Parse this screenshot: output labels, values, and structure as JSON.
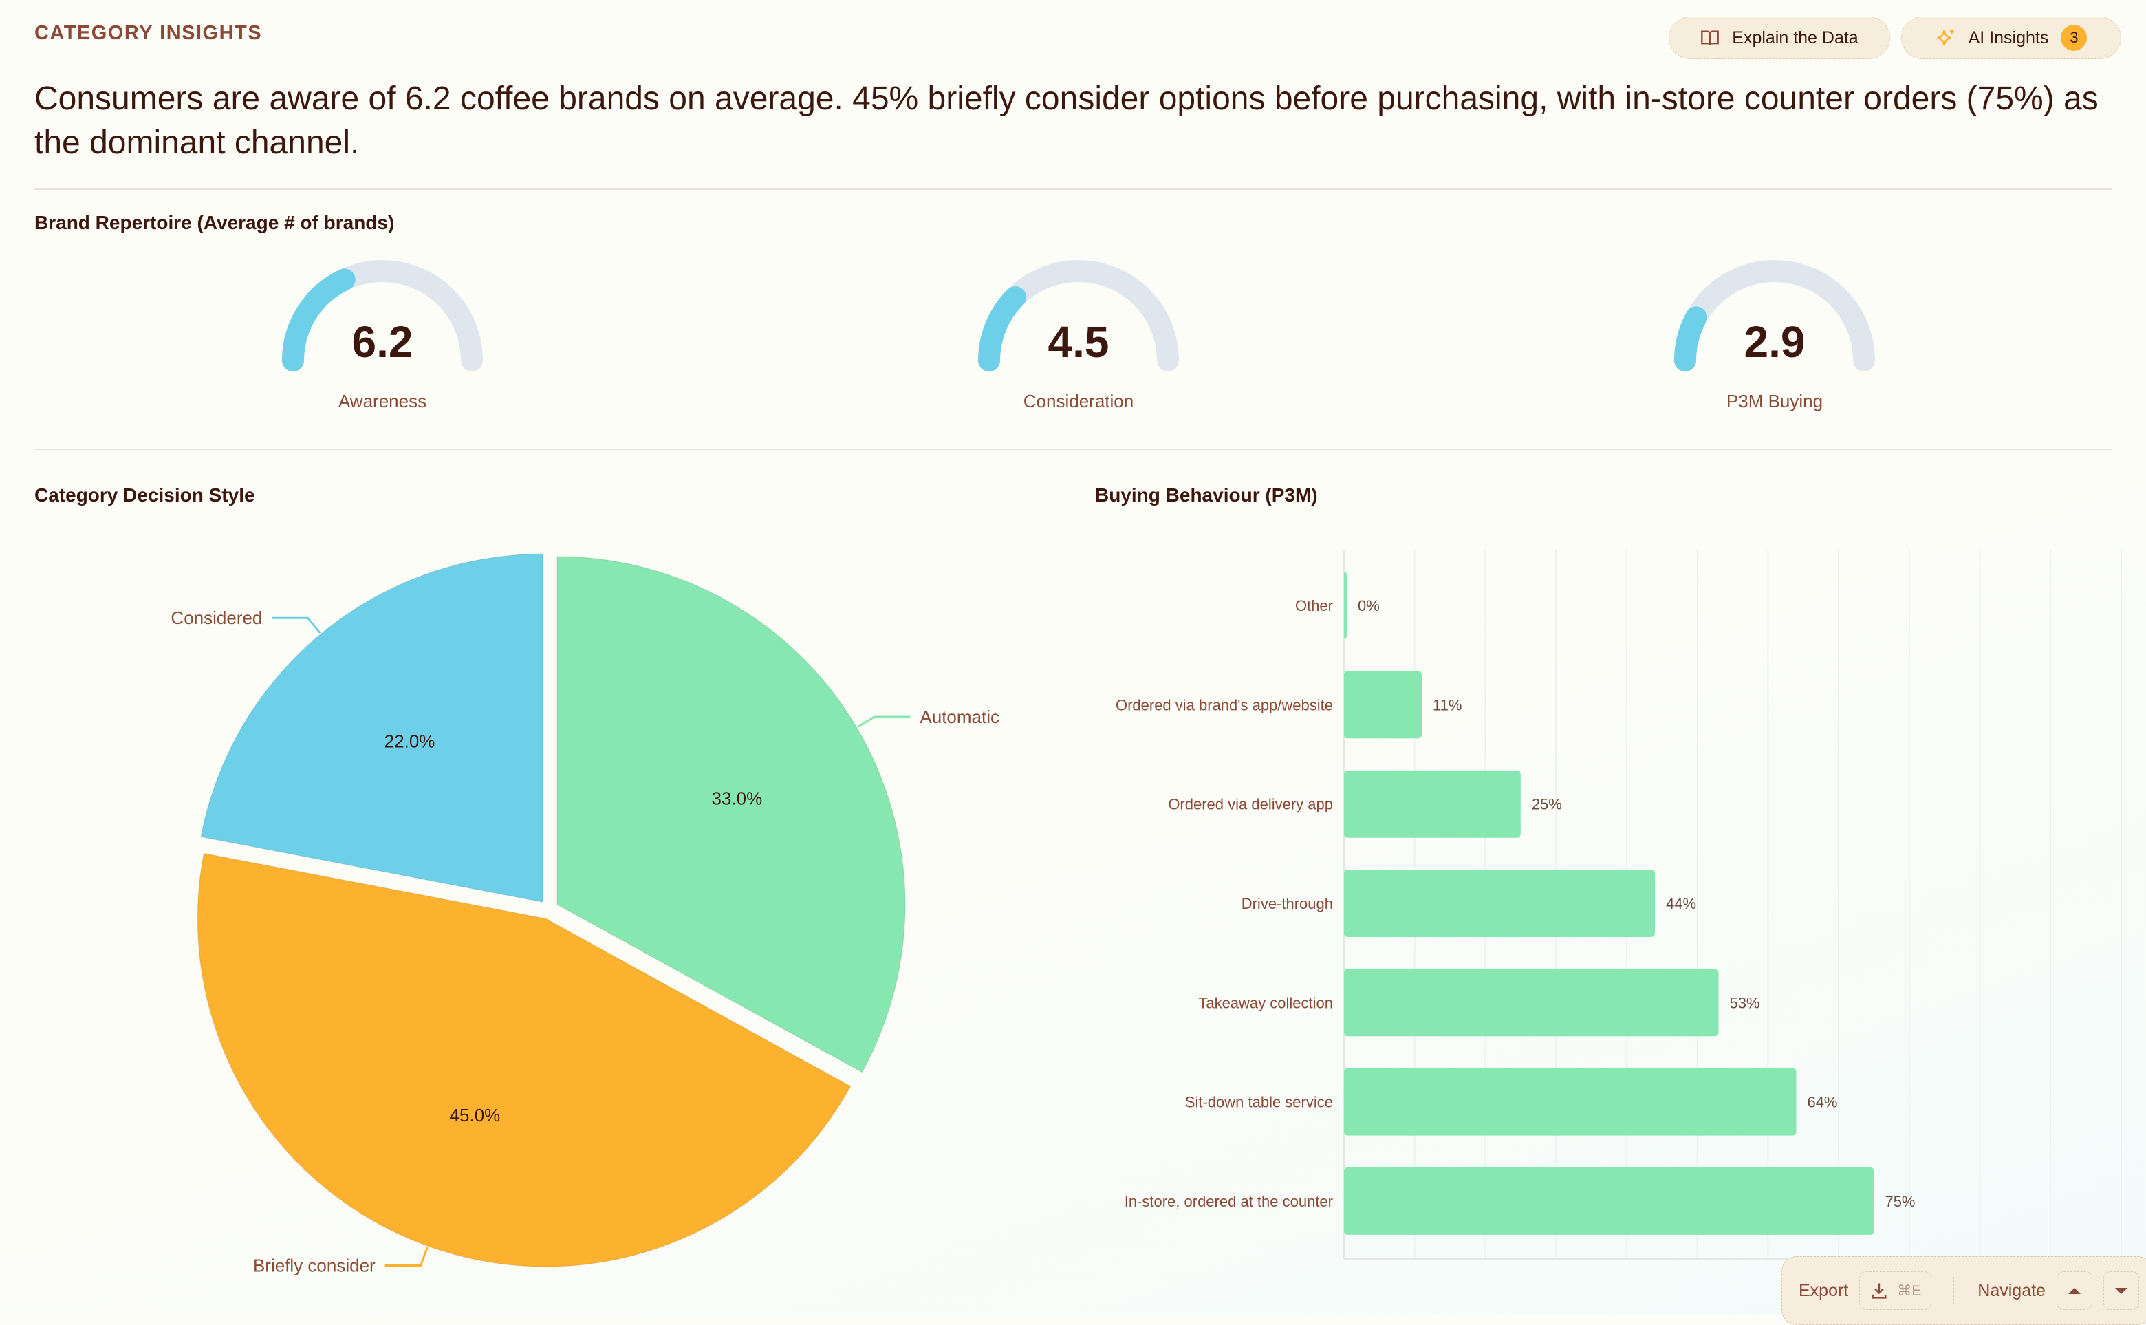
{
  "header": {
    "eyebrow": "CATEGORY INSIGHTS",
    "explain_label": "Explain the Data",
    "ai_label": "AI Insights",
    "ai_badge": "3",
    "headline": "Consumers are aware of 6.2 coffee brands on average. 45% briefly consider options before purchasing, with in-store counter orders (75%) as the dominant channel."
  },
  "repertoire": {
    "title": "Brand Repertoire (Average # of brands)",
    "gauges": [
      {
        "value": "6.2",
        "label": "Awareness",
        "fill_fraction": 0.36
      },
      {
        "value": "4.5",
        "label": "Consideration",
        "fill_fraction": 0.25
      },
      {
        "value": "2.9",
        "label": "P3M Buying",
        "fill_fraction": 0.16
      }
    ]
  },
  "colors": {
    "blue": "#6dd0e8",
    "green": "#86e8b0",
    "orange": "#fdb22f",
    "track": "#e0e6ee",
    "text": "#3b170d",
    "muted": "#8a4a38"
  },
  "toolbar": {
    "export_label": "Export",
    "shortcut": "⌘E",
    "navigate_label": "Navigate"
  },
  "chart_data": [
    {
      "type": "pie",
      "title": "Category Decision Style",
      "slices": [
        {
          "label": "Automatic",
          "value": 33.0,
          "value_label": "33.0%",
          "color": "#86e8b0"
        },
        {
          "label": "Briefly consider",
          "value": 45.0,
          "value_label": "45.0%",
          "color": "#fdb22f"
        },
        {
          "label": "Considered",
          "value": 22.0,
          "value_label": "22.0%",
          "color": "#6dd0e8"
        }
      ]
    },
    {
      "type": "bar",
      "orientation": "horizontal",
      "title": "Buying Behaviour (P3M)",
      "grid": true,
      "xlim": [
        0,
        110
      ],
      "categories": [
        "Other",
        "Ordered via brand's app/website",
        "Ordered via delivery app",
        "Drive-through",
        "Takeaway collection",
        "Sit-down table service",
        "In-store, ordered at the counter"
      ],
      "values": [
        0,
        11,
        25,
        44,
        53,
        64,
        75
      ],
      "value_labels": [
        "0%",
        "11%",
        "25%",
        "44%",
        "53%",
        "64%",
        "75%"
      ],
      "color": "#86e8b0"
    }
  ]
}
